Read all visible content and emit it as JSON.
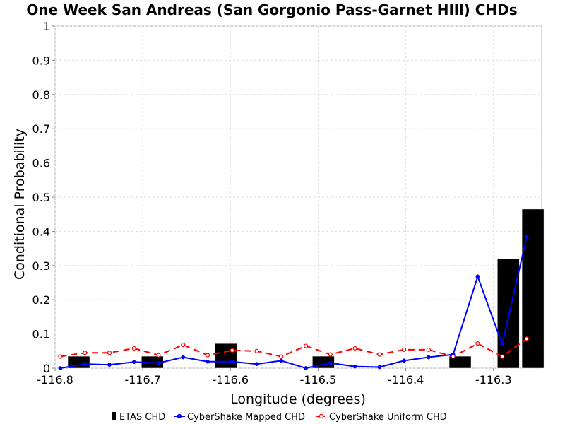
{
  "chart_data": {
    "type": "bar",
    "title": "One Week San Andreas (San Gorgonio Pass-Garnet HIll) CHDs",
    "xlabel": "Longitude (degrees)",
    "ylabel": "Conditional Probability",
    "xlim": [
      -116.8,
      -116.245
    ],
    "ylim": [
      0,
      1
    ],
    "xticks": [
      -116.8,
      -116.7,
      -116.6,
      -116.5,
      -116.4,
      -116.3
    ],
    "xtick_labels": [
      "-116.8",
      "-116.7",
      "-116.6",
      "-116.5",
      "-116.4",
      "-116.3"
    ],
    "yticks": [
      0,
      0.1,
      0.2,
      0.3,
      0.4,
      0.5,
      0.6,
      0.7,
      0.8,
      0.9,
      1
    ],
    "ytick_labels": [
      "0",
      "0.1",
      "0.2",
      "0.3",
      "0.4",
      "0.5",
      "0.6",
      "0.7",
      "0.8",
      "0.9",
      "1"
    ],
    "grid": true,
    "legend_position": "bottom",
    "series": [
      {
        "name": "ETAS CHD",
        "kind": "bar",
        "color": "#000000",
        "bar_width": 0.025,
        "x": [
          -116.773,
          -116.689,
          -116.605,
          -116.494,
          -116.338,
          -116.283,
          -116.255
        ],
        "y": [
          0.035,
          0.035,
          0.072,
          0.035,
          0.035,
          0.32,
          0.465
        ]
      },
      {
        "name": "CyberShake Mapped CHD",
        "kind": "line",
        "color": "#0000ff",
        "marker": "filled-circle",
        "x": [
          -116.794,
          -116.766,
          -116.738,
          -116.71,
          -116.682,
          -116.654,
          -116.626,
          -116.598,
          -116.57,
          -116.542,
          -116.514,
          -116.486,
          -116.458,
          -116.43,
          -116.402,
          -116.374,
          -116.346,
          -116.318,
          -116.29,
          -116.262
        ],
        "y": [
          0.0,
          0.012,
          0.01,
          0.018,
          0.015,
          0.032,
          0.019,
          0.019,
          0.012,
          0.022,
          0.0,
          0.015,
          0.005,
          0.003,
          0.022,
          0.032,
          0.04,
          0.268,
          0.07,
          0.385
        ]
      },
      {
        "name": "CyberShake Uniform CHD",
        "kind": "line",
        "color": "#ff0000",
        "marker": "open-circle",
        "dashed": true,
        "x": [
          -116.794,
          -116.766,
          -116.738,
          -116.71,
          -116.682,
          -116.654,
          -116.626,
          -116.598,
          -116.57,
          -116.542,
          -116.514,
          -116.486,
          -116.458,
          -116.43,
          -116.402,
          -116.374,
          -116.346,
          -116.318,
          -116.29,
          -116.262
        ],
        "y": [
          0.034,
          0.045,
          0.045,
          0.058,
          0.038,
          0.068,
          0.038,
          0.052,
          0.05,
          0.034,
          0.065,
          0.04,
          0.058,
          0.04,
          0.054,
          0.054,
          0.034,
          0.072,
          0.034,
          0.086
        ]
      }
    ]
  }
}
